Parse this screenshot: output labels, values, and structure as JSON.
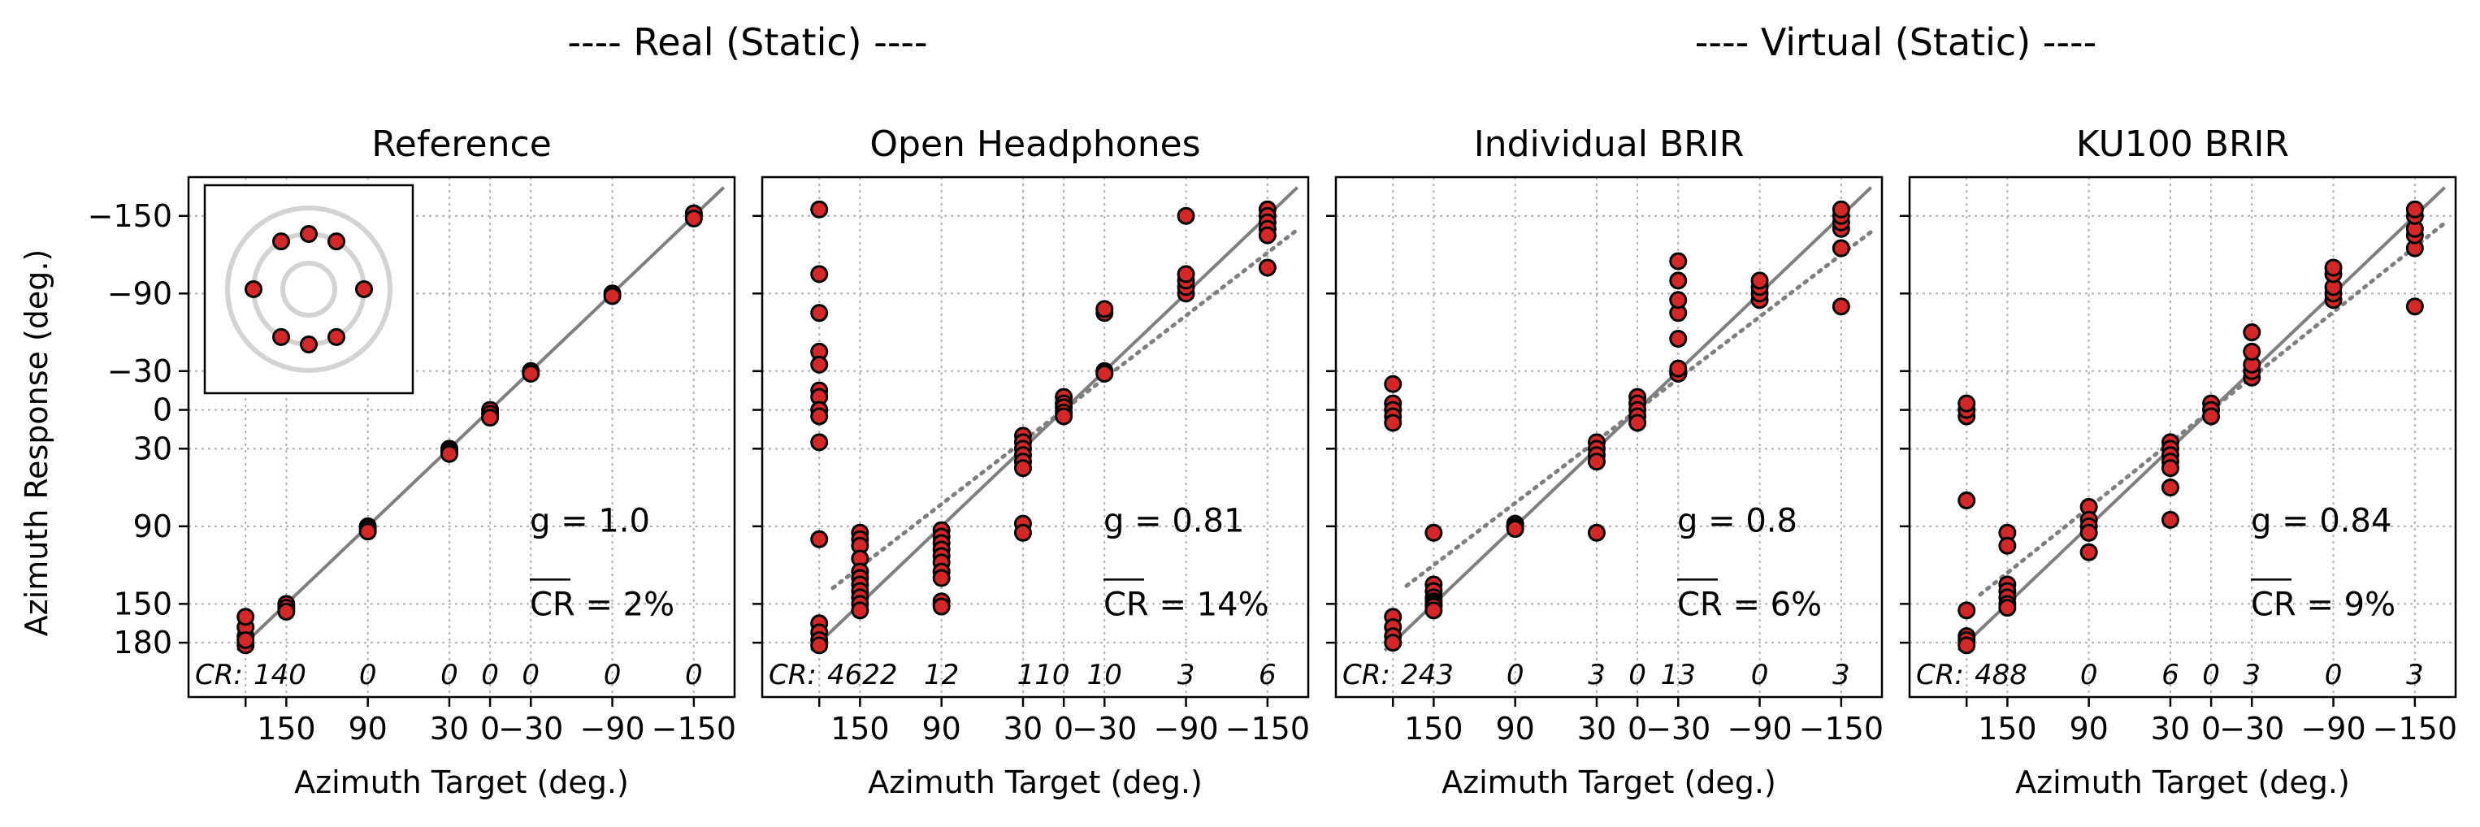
{
  "figure": {
    "group_titles": [
      "---- Real (Static) ----",
      "---- Virtual (Static) ----"
    ],
    "ylabel": "Azimuth Response (deg.)",
    "xlabel": "Azimuth Target (deg.)",
    "tick_labels": [
      "180",
      "150",
      "90",
      "30",
      "0",
      "−30",
      "−90",
      "−150"
    ],
    "y_tick_labels": [
      "−150",
      "−90",
      "−30",
      "0",
      "30",
      "90",
      "150",
      "180"
    ],
    "cr_prefix": "CR:",
    "colors": {
      "marker": "#d62728",
      "marker_edge": "#000000",
      "line": "#7f7f7f",
      "grid": "#b0b0b0",
      "inset_ring": "#d3d3d3"
    }
  },
  "chart_data": [
    {
      "type": "scatter",
      "title": "Reference",
      "g_label": "g = 1.0",
      "cr_mean_label": "CR = 2%",
      "cr_counts": [
        "140",
        "0",
        "0",
        "0",
        "0",
        "0",
        "0"
      ],
      "inset": true,
      "points": [
        [
          180,
          175
        ],
        [
          180,
          168
        ],
        [
          180,
          160
        ],
        [
          180,
          182
        ],
        [
          180,
          178
        ],
        [
          150,
          150
        ],
        [
          150,
          153
        ],
        [
          150,
          156
        ],
        [
          90,
          90
        ],
        [
          90,
          92
        ],
        [
          90,
          94
        ],
        [
          30,
          30
        ],
        [
          30,
          32
        ],
        [
          30,
          34
        ],
        [
          0,
          0
        ],
        [
          0,
          3
        ],
        [
          0,
          6
        ],
        [
          -30,
          -30
        ],
        [
          -30,
          -28
        ],
        [
          -90,
          -90
        ],
        [
          -90,
          -88
        ],
        [
          -150,
          -150
        ],
        [
          -150,
          -152
        ],
        [
          -150,
          -148
        ]
      ]
    },
    {
      "type": "scatter",
      "title": "Open Headphones",
      "g_label": "g = 0.81",
      "cr_mean_label": "CR = 14%",
      "cr_counts": [
        "4622",
        "12",
        "110",
        "10",
        "3",
        "6"
      ],
      "points": [
        [
          180,
          -155
        ],
        [
          180,
          -105
        ],
        [
          180,
          -75
        ],
        [
          180,
          -45
        ],
        [
          180,
          -35
        ],
        [
          180,
          -15
        ],
        [
          180,
          -10
        ],
        [
          180,
          0
        ],
        [
          180,
          5
        ],
        [
          180,
          25
        ],
        [
          180,
          100
        ],
        [
          180,
          165
        ],
        [
          180,
          172
        ],
        [
          180,
          178
        ],
        [
          180,
          182
        ],
        [
          150,
          95
        ],
        [
          150,
          100
        ],
        [
          150,
          105
        ],
        [
          150,
          115
        ],
        [
          150,
          125
        ],
        [
          150,
          130
        ],
        [
          150,
          135
        ],
        [
          150,
          140
        ],
        [
          150,
          145
        ],
        [
          150,
          150
        ],
        [
          150,
          155
        ],
        [
          90,
          93
        ],
        [
          90,
          98
        ],
        [
          90,
          103
        ],
        [
          90,
          108
        ],
        [
          90,
          113
        ],
        [
          90,
          118
        ],
        [
          90,
          125
        ],
        [
          90,
          130
        ],
        [
          90,
          148
        ],
        [
          90,
          152
        ],
        [
          30,
          20
        ],
        [
          30,
          25
        ],
        [
          30,
          30
        ],
        [
          30,
          35
        ],
        [
          30,
          40
        ],
        [
          30,
          45
        ],
        [
          30,
          88
        ],
        [
          30,
          95
        ],
        [
          0,
          -10
        ],
        [
          0,
          -5
        ],
        [
          0,
          -2
        ],
        [
          0,
          2
        ],
        [
          0,
          5
        ],
        [
          -30,
          -30
        ],
        [
          -30,
          -28
        ],
        [
          -30,
          -75
        ],
        [
          -30,
          -78
        ],
        [
          -90,
          -90
        ],
        [
          -90,
          -95
        ],
        [
          -90,
          -100
        ],
        [
          -90,
          -105
        ],
        [
          -90,
          -150
        ],
        [
          -150,
          -155
        ],
        [
          -150,
          -150
        ],
        [
          -150,
          -145
        ],
        [
          -150,
          -140
        ],
        [
          -150,
          -135
        ],
        [
          -150,
          -110
        ]
      ]
    },
    {
      "type": "scatter",
      "title": "Individual BRIR",
      "g_label": "g = 0.8",
      "cr_mean_label": "CR = 6%",
      "cr_counts": [
        "243",
        "0",
        "3",
        "0",
        "13",
        "0",
        "3"
      ],
      "points": [
        [
          180,
          -20
        ],
        [
          180,
          -5
        ],
        [
          180,
          0
        ],
        [
          180,
          5
        ],
        [
          180,
          10
        ],
        [
          180,
          160
        ],
        [
          180,
          168
        ],
        [
          180,
          175
        ],
        [
          180,
          180
        ],
        [
          150,
          95
        ],
        [
          150,
          135
        ],
        [
          150,
          140
        ],
        [
          150,
          145
        ],
        [
          150,
          148
        ],
        [
          150,
          150
        ],
        [
          150,
          152
        ],
        [
          150,
          155
        ],
        [
          90,
          88
        ],
        [
          90,
          90
        ],
        [
          90,
          92
        ],
        [
          30,
          25
        ],
        [
          30,
          30
        ],
        [
          30,
          35
        ],
        [
          30,
          40
        ],
        [
          30,
          95
        ],
        [
          0,
          -10
        ],
        [
          0,
          -5
        ],
        [
          0,
          0
        ],
        [
          0,
          5
        ],
        [
          0,
          10
        ],
        [
          -30,
          -30
        ],
        [
          -30,
          -28
        ],
        [
          -30,
          -32
        ],
        [
          -30,
          -55
        ],
        [
          -30,
          -75
        ],
        [
          -30,
          -85
        ],
        [
          -30,
          -100
        ],
        [
          -30,
          -115
        ],
        [
          -90,
          -85
        ],
        [
          -90,
          -90
        ],
        [
          -90,
          -95
        ],
        [
          -90,
          -100
        ],
        [
          -150,
          -80
        ],
        [
          -150,
          -125
        ],
        [
          -150,
          -140
        ],
        [
          -150,
          -145
        ],
        [
          -150,
          -150
        ],
        [
          -150,
          -155
        ]
      ]
    },
    {
      "type": "scatter",
      "title": "KU100 BRIR",
      "g_label": "g = 0.84",
      "cr_mean_label": "CR = 9%",
      "cr_counts": [
        "488",
        "0",
        "6",
        "0",
        "3",
        "0",
        "3"
      ],
      "points": [
        [
          180,
          5
        ],
        [
          180,
          0
        ],
        [
          180,
          -5
        ],
        [
          180,
          70
        ],
        [
          180,
          155
        ],
        [
          180,
          175
        ],
        [
          180,
          178
        ],
        [
          180,
          182
        ],
        [
          150,
          95
        ],
        [
          150,
          105
        ],
        [
          150,
          135
        ],
        [
          150,
          140
        ],
        [
          150,
          145
        ],
        [
          150,
          150
        ],
        [
          150,
          153
        ],
        [
          90,
          75
        ],
        [
          90,
          85
        ],
        [
          90,
          90
        ],
        [
          90,
          95
        ],
        [
          90,
          110
        ],
        [
          30,
          25
        ],
        [
          30,
          30
        ],
        [
          30,
          35
        ],
        [
          30,
          40
        ],
        [
          30,
          45
        ],
        [
          30,
          60
        ],
        [
          30,
          85
        ],
        [
          0,
          -5
        ],
        [
          0,
          0
        ],
        [
          0,
          5
        ],
        [
          -30,
          -25
        ],
        [
          -30,
          -30
        ],
        [
          -30,
          -35
        ],
        [
          -30,
          -45
        ],
        [
          -30,
          -60
        ],
        [
          -90,
          -85
        ],
        [
          -90,
          -90
        ],
        [
          -90,
          -95
        ],
        [
          -90,
          -105
        ],
        [
          -90,
          -110
        ],
        [
          -150,
          -80
        ],
        [
          -150,
          -125
        ],
        [
          -150,
          -135
        ],
        [
          -150,
          -140
        ],
        [
          -150,
          -150
        ],
        [
          -150,
          -155
        ]
      ]
    }
  ]
}
